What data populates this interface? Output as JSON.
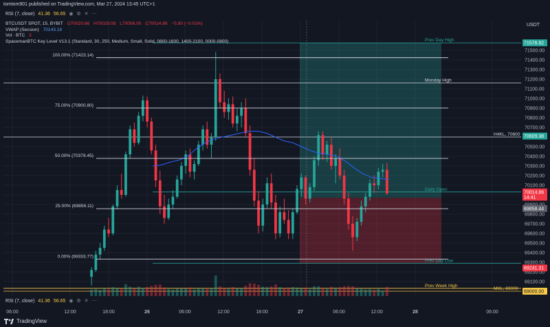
{
  "header": {
    "publisher": "tomtom901 published on TradingView.com, Mar 27, 2024 13:45 UTC+1"
  },
  "indicators": {
    "rsi_label": "RSI (7, close)",
    "rsi_top_values": [
      "41.36",
      "56.65"
    ],
    "rsi_bottom_values": [
      "41.36",
      "56.65"
    ],
    "symbol_line": {
      "name": "BTCUSDT SPOT, 15, BYBIT",
      "o": "O70020.66",
      "h": "H70029.08",
      "l": "L70006.00",
      "c": "C70014.86",
      "chg": "−5.80 (−0.01%)"
    },
    "vwap_label": "VWAP (Session)",
    "vwap_value": "70143.18",
    "vol_label": "Vol · BTC",
    "vol_value": "3",
    "keylevel_label": "SpacemanBTC Key Level V13.1 (Standard, 30, 250, Medium, Small, Solid, 0800-1600, 1400-2100, 0000-0800)"
  },
  "currency": "USDT",
  "brand": "TradingView",
  "chart_data": {
    "type": "candlestick",
    "timeframe": "15",
    "ylim": [
      69000,
      71650
    ],
    "x_ticks": [
      "06:00",
      "12:00",
      "18:00",
      "26",
      "06:00",
      "12:00",
      "18:00",
      "27",
      "06:00",
      "12:00",
      "28",
      "06:00"
    ],
    "y_ticks": [
      69100,
      69200,
      69300,
      69400,
      69500,
      69600,
      69700,
      69800,
      69900,
      70000,
      70100,
      70200,
      70300,
      70400,
      70500,
      70600,
      70700,
      70800,
      70900,
      71000,
      71100,
      71200,
      71300,
      71400,
      71500
    ],
    "fib_levels": [
      {
        "label": "100.00% (71423.14)",
        "price": 71423.14
      },
      {
        "label": "75.00% (70900.80)",
        "price": 70900.8
      },
      {
        "label": "50.00% (70378.45)",
        "price": 70378.45
      },
      {
        "label": "25.00% (69856.11)",
        "price": 69856.11
      },
      {
        "label": "0.00% (69333.77)",
        "price": 69333.77
      }
    ],
    "key_levels": [
      {
        "label": "Prev Day High",
        "price": 71576.92,
        "color": "#26a69a"
      },
      {
        "label": "Monday High",
        "price": 71160,
        "color": "#d1d4dc"
      },
      {
        "label": "H4KL, 70600",
        "price": 70600,
        "color": "#d1d4dc"
      },
      {
        "label": "Daily Open",
        "price": 70030,
        "color": "#26a69a"
      },
      {
        "label": "Prev Day Low",
        "price": 69290,
        "color": "#26a69a"
      },
      {
        "label": "Prev Week High",
        "price": 69030,
        "color": "#f7c948"
      },
      {
        "label": "MKL, 69000",
        "price": 69000,
        "color": "#f7c948"
      }
    ],
    "price_labels": [
      {
        "text": "71576.92",
        "price": 71576.92,
        "bg": "#26a69a"
      },
      {
        "text": "70609.38",
        "price": 70609.38,
        "bg": "#26a69a"
      },
      {
        "text": "70014.86",
        "price": 70030,
        "bg": "#f23645"
      },
      {
        "text": "14:41",
        "price": 69975,
        "bg": "#f23645"
      },
      {
        "text": "69858.44",
        "price": 69858.44,
        "bg": "#5d606b"
      },
      {
        "text": "69241.31",
        "price": 69241.31,
        "bg": "#f23645"
      },
      {
        "text": "69000.00",
        "price": 69000,
        "bg": "#f7c948"
      }
    ],
    "position": {
      "entry": 69970,
      "target": 71576.92,
      "stop": 69290
    },
    "vwap": [
      70300,
      70310,
      70340,
      70360,
      70400,
      70480,
      70540,
      70580,
      70600,
      70620,
      70640,
      70660,
      70660,
      70640,
      70600,
      70560,
      70540,
      70500,
      70460,
      70430,
      70420,
      70400,
      70350,
      70280,
      70220,
      70180,
      70170,
      70160
    ],
    "candles": [
      [
        69150,
        69250,
        69060,
        69220
      ],
      [
        69220,
        69420,
        69200,
        69380
      ],
      [
        69380,
        69500,
        69330,
        69450
      ],
      [
        69450,
        69680,
        69420,
        69640
      ],
      [
        69640,
        69760,
        69560,
        69600
      ],
      [
        69600,
        69900,
        69580,
        69880
      ],
      [
        69880,
        70100,
        69850,
        70050
      ],
      [
        70050,
        70220,
        69960,
        70000
      ],
      [
        70000,
        70450,
        69980,
        70420
      ],
      [
        70420,
        70720,
        70380,
        70680
      ],
      [
        70680,
        70750,
        70500,
        70540
      ],
      [
        70540,
        70860,
        70520,
        70820
      ],
      [
        70820,
        71030,
        70760,
        70980
      ],
      [
        70980,
        71020,
        70700,
        70760
      ],
      [
        70760,
        70800,
        70420,
        70460
      ],
      [
        70460,
        70520,
        70080,
        70150
      ],
      [
        70150,
        70250,
        69800,
        69880
      ],
      [
        69880,
        70000,
        69700,
        69760
      ],
      [
        69760,
        69960,
        69740,
        69900
      ],
      [
        69900,
        70050,
        69860,
        69980
      ],
      [
        69980,
        70200,
        69960,
        70160
      ],
      [
        70160,
        70340,
        70100,
        70300
      ],
      [
        70300,
        70460,
        70220,
        70420
      ],
      [
        70420,
        70480,
        70180,
        70240
      ],
      [
        70240,
        70360,
        70160,
        70320
      ],
      [
        70320,
        70560,
        70300,
        70520
      ],
      [
        70520,
        70720,
        70460,
        70680
      ],
      [
        70680,
        70760,
        70480,
        70520
      ],
      [
        70520,
        70640,
        70380,
        70600
      ],
      [
        70600,
        71480,
        70560,
        71200
      ],
      [
        71200,
        71260,
        70900,
        70960
      ],
      [
        70960,
        71080,
        70800,
        70860
      ],
      [
        70860,
        71000,
        70780,
        70940
      ],
      [
        70940,
        71020,
        70700,
        70740
      ],
      [
        70740,
        70900,
        70660,
        70820
      ],
      [
        70820,
        70960,
        70700,
        70900
      ],
      [
        70900,
        71000,
        70600,
        70640
      ],
      [
        70640,
        70720,
        70200,
        70260
      ],
      [
        70260,
        70380,
        69880,
        69940
      ],
      [
        69940,
        70040,
        69600,
        69680
      ],
      [
        69680,
        69960,
        69620,
        69900
      ],
      [
        69900,
        70180,
        69860,
        70120
      ],
      [
        70120,
        70220,
        69860,
        69920
      ],
      [
        69920,
        70000,
        69540,
        69600
      ],
      [
        69600,
        69880,
        69560,
        69820
      ],
      [
        69820,
        69960,
        69700,
        69740
      ],
      [
        69740,
        69840,
        69540,
        69600
      ],
      [
        69600,
        69860,
        69540,
        69820
      ],
      [
        69820,
        70100,
        69800,
        70060
      ],
      [
        70060,
        70220,
        69980,
        70180
      ],
      [
        70180,
        70200,
        69900,
        69960
      ],
      [
        69960,
        70120,
        69920,
        70080
      ],
      [
        70080,
        70400,
        70040,
        70360
      ],
      [
        70360,
        70660,
        70300,
        70620
      ],
      [
        70620,
        70660,
        70360,
        70420
      ],
      [
        70420,
        70560,
        70340,
        70520
      ],
      [
        70520,
        70600,
        70260,
        70300
      ],
      [
        70300,
        70420,
        70120,
        70380
      ],
      [
        70380,
        70480,
        70160,
        70200
      ],
      [
        70200,
        70260,
        69900,
        69960
      ],
      [
        69960,
        70020,
        69640,
        69700
      ],
      [
        69700,
        69780,
        69420,
        69560
      ],
      [
        69560,
        69760,
        69520,
        69720
      ],
      [
        69720,
        69940,
        69680,
        69880
      ],
      [
        69880,
        70020,
        69820,
        69980
      ],
      [
        69980,
        70160,
        69940,
        70120
      ],
      [
        70120,
        70200,
        70020,
        70100
      ],
      [
        70100,
        70280,
        70060,
        70240
      ],
      [
        70240,
        70320,
        70180,
        70260
      ],
      [
        70260,
        70330,
        70000,
        70014
      ]
    ]
  }
}
